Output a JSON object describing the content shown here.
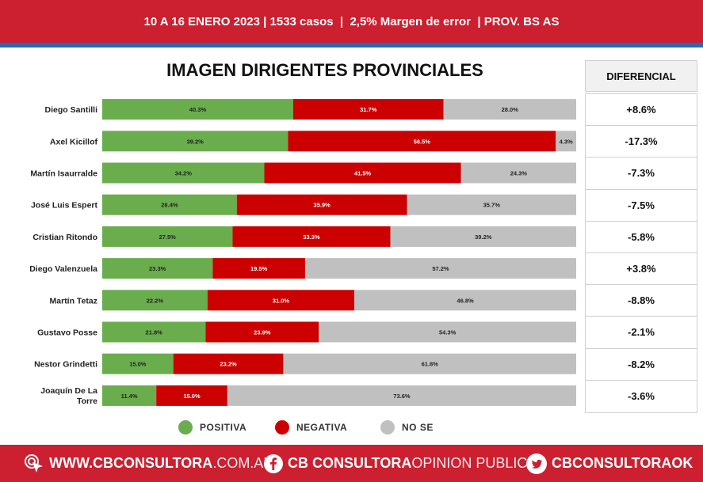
{
  "header": {
    "text": "10 A 16 ENERO 2023 | 1533 casos  |  2,5% Margen de error  | PROV. BS AS"
  },
  "colors": {
    "positiva": "#69ad4d",
    "negativa": "#cc0000",
    "no_se": "#c0c0c0",
    "brand_red": "#cc1f2f",
    "accent_blue": "#2a68b3"
  },
  "chart_data": {
    "type": "bar",
    "orientation": "horizontal",
    "stacked": true,
    "title": "IMAGEN DIRIGENTES PROVINCIALES",
    "categories": [
      "Diego Santilli",
      "Axel Kicillof",
      "Martín Isaurralde",
      "José Luis Espert",
      "Cristian Ritondo",
      "Diego Valenzuela",
      "Martín Tetaz",
      "Gustavo Posse",
      "Nestor Grindetti",
      "Joaquín De La Torre"
    ],
    "series": [
      {
        "name": "POSITIVA",
        "color": "#69ad4d",
        "values": [
          40.3,
          39.2,
          34.2,
          28.4,
          27.5,
          23.3,
          22.2,
          21.8,
          15.0,
          11.4
        ],
        "labels": [
          "40.3%",
          "39.2%",
          "34.2%",
          "28.4%",
          "27.5%",
          "23.3%",
          "22.2%",
          "21.8%",
          "15.0%",
          "11.4%"
        ]
      },
      {
        "name": "NEGATIVA",
        "color": "#cc0000",
        "values": [
          31.7,
          56.5,
          41.5,
          35.9,
          33.3,
          19.5,
          31.0,
          23.9,
          23.2,
          15.0
        ],
        "labels": [
          "31.7%",
          "56.5%",
          "41.5%",
          "35.9%",
          "33.3%",
          "19.5%",
          "31.0%",
          "23.9%",
          "23.2%",
          "15.0%"
        ]
      },
      {
        "name": "NO SE",
        "color": "#c0c0c0",
        "values": [
          28.0,
          4.3,
          24.3,
          35.7,
          39.2,
          57.2,
          46.8,
          54.3,
          61.8,
          73.6
        ],
        "labels": [
          "28.0%",
          "4.3%",
          "24.3%",
          "35.7%",
          "39.2%",
          "57.2%",
          "46.8%",
          "54.3%",
          "61.8%",
          "73.6%"
        ]
      }
    ],
    "legend": "bottom",
    "differential": {
      "header": "DIFERENCIAL",
      "values": [
        "+8.6%",
        "-17.3%",
        "-7.3%",
        "-7.5%",
        "-5.8%",
        "+3.8%",
        "-8.8%",
        "-2.1%",
        "-8.2%",
        "-3.6%"
      ]
    }
  },
  "footer": {
    "website": {
      "bold": "WWW.CBCONSULTORA",
      "light": ".COM.AR",
      "icon": "cursor-click-icon"
    },
    "facebook": {
      "bold": "CB CONSULTORA",
      "light": " OPINION PUBLICA",
      "icon": "facebook-icon"
    },
    "twitter": {
      "bold": "CBCONSULTORAOK",
      "icon": "twitter-icon"
    }
  }
}
